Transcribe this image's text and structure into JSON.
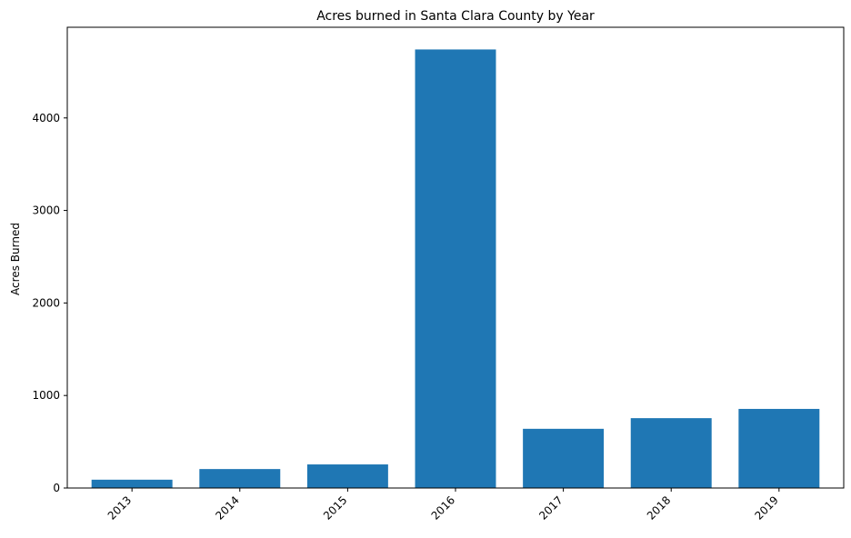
{
  "chart_data": {
    "type": "bar",
    "title": "Acres burned in Santa Clara County by Year",
    "xlabel": "",
    "ylabel": "Acres Burned",
    "categories": [
      "2013",
      "2014",
      "2015",
      "2016",
      "2017",
      "2018",
      "2019"
    ],
    "values": [
      90,
      205,
      255,
      4740,
      640,
      755,
      855
    ],
    "ylim": [
      0,
      4980
    ],
    "yticks": [
      0,
      1000,
      2000,
      3000,
      4000
    ],
    "bar_color": "#1f77b4",
    "grid": false,
    "legend": "none"
  }
}
